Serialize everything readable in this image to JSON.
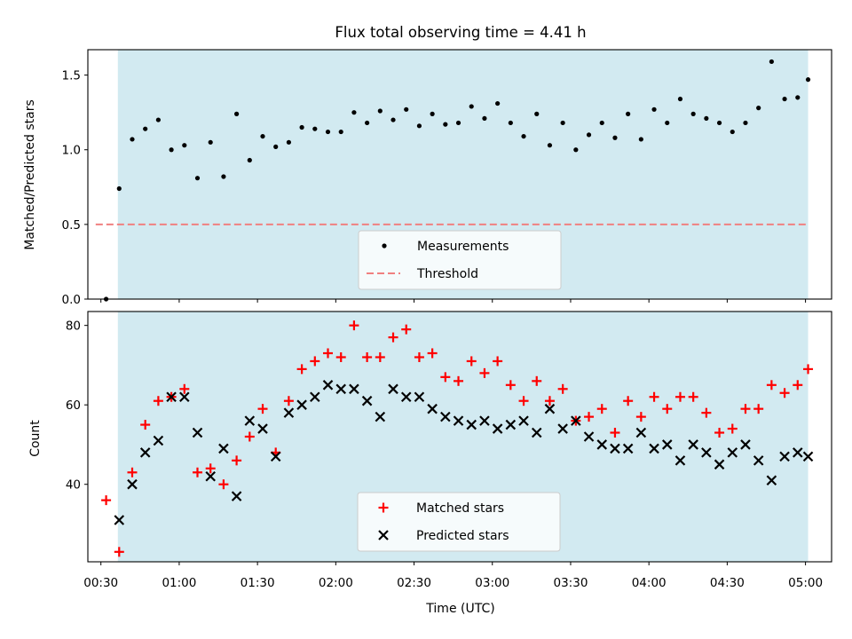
{
  "chart_data": [
    {
      "type": "scatter",
      "title": "Flux total observing time = 4.41 h",
      "xlabel": "",
      "ylabel": "Matched/Predicted stars",
      "ylim": [
        0,
        1.67
      ],
      "yticks": [
        "0.0",
        "0.5",
        "1.0",
        "1.5"
      ],
      "x_unit": "minutes after 00:00 UTC",
      "xlim": [
        25,
        310
      ],
      "shaded_region": {
        "from": 36.5,
        "to": 301,
        "color": "#add8e6"
      },
      "threshold": {
        "name": "Threshold",
        "value": 0.5,
        "color": "#f08080",
        "style": "dashed",
        "from": 28,
        "to": 301
      },
      "legend_position": "lower center",
      "series": [
        {
          "name": "Measurements",
          "color": "#000000",
          "marker": "dot",
          "x": [
            32,
            37,
            42,
            47,
            52,
            57,
            62,
            67,
            72,
            77,
            82,
            87,
            92,
            97,
            102,
            107,
            112,
            117,
            122,
            127,
            132,
            137,
            142,
            147,
            152,
            157,
            162,
            167,
            172,
            177,
            182,
            187,
            192,
            197,
            202,
            207,
            212,
            217,
            222,
            227,
            232,
            237,
            242,
            247,
            252,
            257,
            262,
            267,
            272,
            277,
            282,
            287,
            292,
            297,
            301
          ],
          "y": [
            0.0,
            0.74,
            1.07,
            1.14,
            1.2,
            1.0,
            1.03,
            0.81,
            1.05,
            0.82,
            1.24,
            0.93,
            1.09,
            1.02,
            1.05,
            1.15,
            1.14,
            1.12,
            1.12,
            1.25,
            1.18,
            1.26,
            1.2,
            1.27,
            1.16,
            1.24,
            1.17,
            1.18,
            1.29,
            1.21,
            1.31,
            1.18,
            1.09,
            1.24,
            1.03,
            1.18,
            1.0,
            1.1,
            1.18,
            1.08,
            1.24,
            1.07,
            1.27,
            1.18,
            1.34,
            1.24,
            1.21,
            1.18,
            1.12,
            1.18,
            1.28,
            1.59,
            1.34,
            1.35,
            1.47
          ]
        }
      ]
    },
    {
      "type": "scatter",
      "title": "",
      "xlabel": "Time (UTC)",
      "ylabel": "Count",
      "ylim": [
        20.5,
        83.5
      ],
      "yticks": [
        "40",
        "60",
        "80"
      ],
      "x_unit": "minutes after 00:00 UTC",
      "xlim": [
        25,
        310
      ],
      "xticks": [
        "00:30",
        "01:00",
        "01:30",
        "02:00",
        "02:30",
        "03:00",
        "03:30",
        "04:00",
        "04:30",
        "05:00"
      ],
      "shaded_region": {
        "from": 36.5,
        "to": 301,
        "color": "#add8e6"
      },
      "legend_position": "lower center",
      "series": [
        {
          "name": "Matched stars",
          "color": "#ff0000",
          "marker": "plus",
          "x": [
            32,
            37,
            42,
            47,
            52,
            57,
            62,
            67,
            72,
            77,
            82,
            87,
            92,
            97,
            102,
            107,
            112,
            117,
            122,
            127,
            132,
            137,
            142,
            147,
            152,
            157,
            162,
            167,
            172,
            177,
            182,
            187,
            192,
            197,
            202,
            207,
            212,
            217,
            222,
            227,
            232,
            237,
            242,
            247,
            252,
            257,
            262,
            267,
            272,
            277,
            282,
            287,
            292,
            297,
            301
          ],
          "y": [
            36,
            23,
            43,
            55,
            61,
            62,
            64,
            43,
            44,
            40,
            46,
            52,
            59,
            48,
            61,
            69,
            71,
            73,
            72,
            80,
            72,
            72,
            77,
            79,
            72,
            73,
            67,
            66,
            71,
            68,
            71,
            65,
            61,
            66,
            61,
            64,
            56,
            57,
            59,
            53,
            61,
            57,
            62,
            59,
            62,
            62,
            58,
            53,
            54,
            59,
            59,
            65,
            63,
            65,
            69
          ]
        },
        {
          "name": "Predicted stars",
          "color": "#000000",
          "marker": "x",
          "x": [
            37,
            42,
            47,
            52,
            57,
            62,
            67,
            72,
            77,
            82,
            87,
            92,
            97,
            102,
            107,
            112,
            117,
            122,
            127,
            132,
            137,
            142,
            147,
            152,
            157,
            162,
            167,
            172,
            177,
            182,
            187,
            192,
            197,
            202,
            207,
            212,
            217,
            222,
            227,
            232,
            237,
            242,
            247,
            252,
            257,
            262,
            267,
            272,
            277,
            282,
            287,
            292,
            297,
            301
          ],
          "y": [
            31,
            40,
            48,
            51,
            62,
            62,
            53,
            42,
            49,
            37,
            56,
            54,
            47,
            58,
            60,
            62,
            65,
            64,
            64,
            61,
            57,
            64,
            62,
            62,
            59,
            57,
            56,
            55,
            56,
            54,
            55,
            56,
            53,
            59,
            54,
            56,
            52,
            50,
            49,
            49,
            53,
            49,
            50,
            46,
            50,
            48,
            45,
            48,
            50,
            46,
            41,
            47,
            48,
            47
          ]
        }
      ]
    }
  ]
}
